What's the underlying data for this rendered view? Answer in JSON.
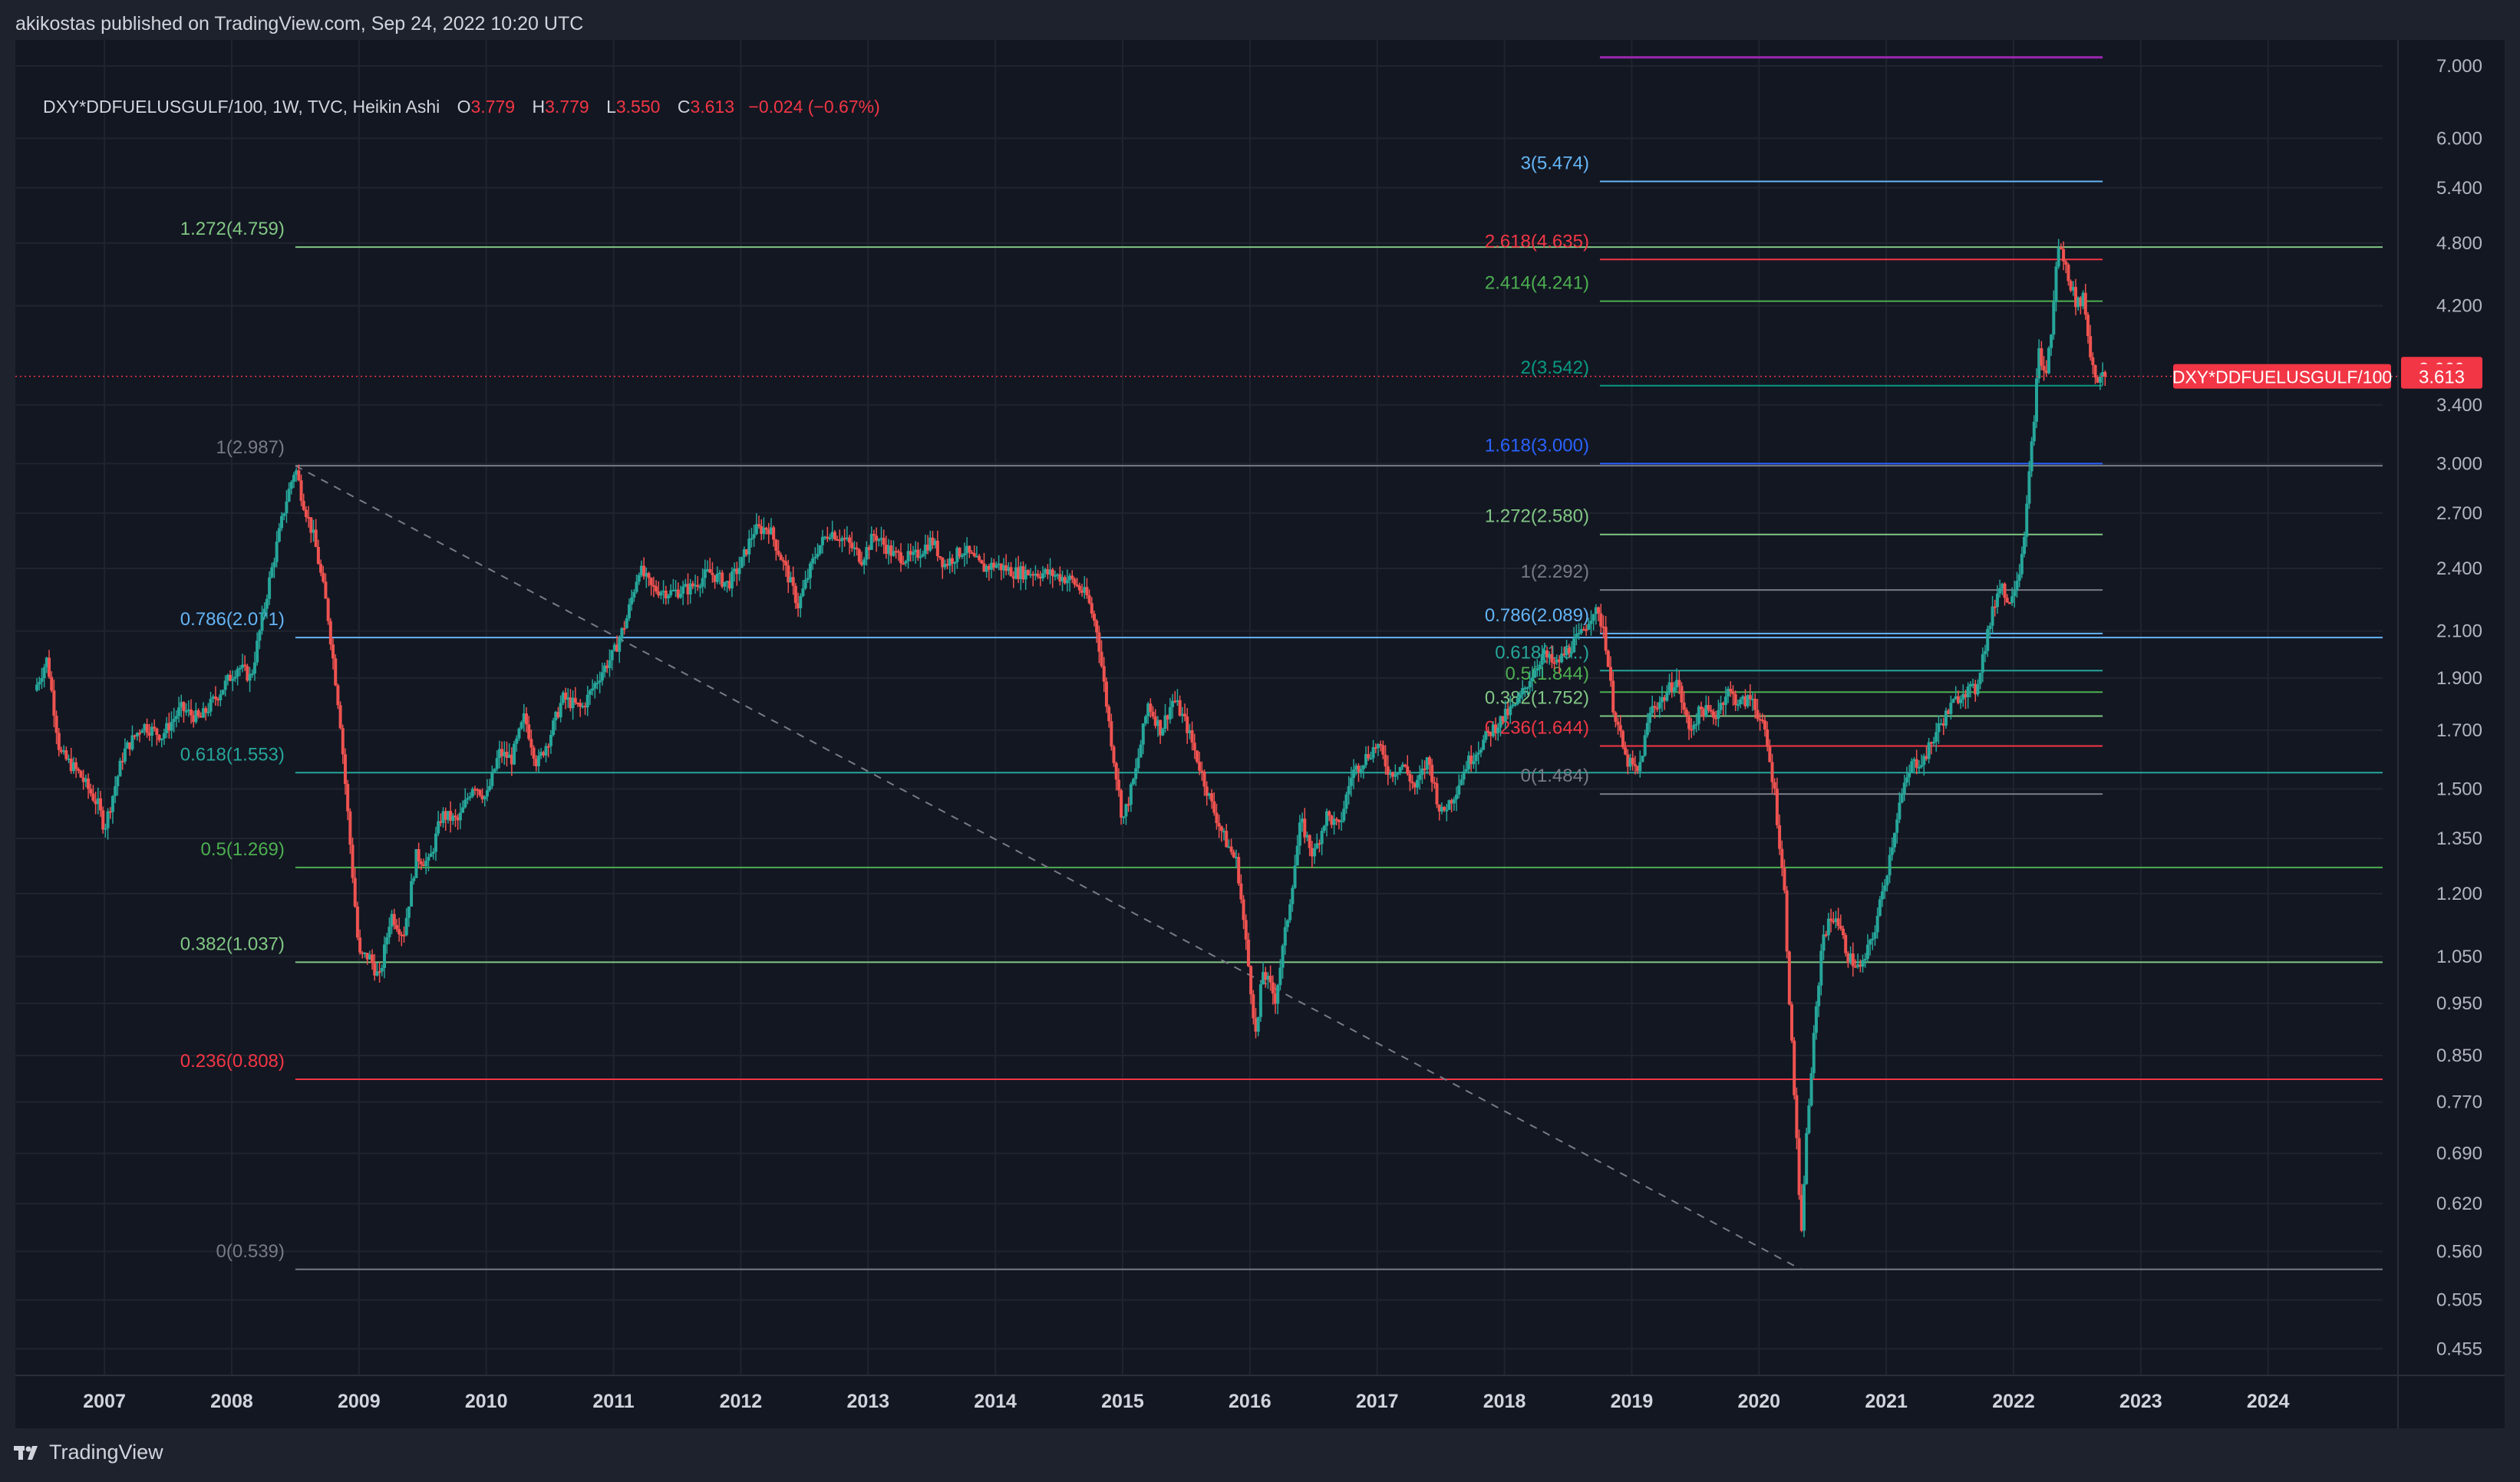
{
  "header": {
    "publisher_text": "akikostas published on TradingView.com, Sep 24, 2022 10:20 UTC"
  },
  "legend": {
    "symbol_text": "DXY*DDFUELUSGULF/100, 1W, TVC, Heikin Ashi",
    "o_label": "O",
    "o_value": "3.779",
    "h_label": "H",
    "h_value": "3.779",
    "l_label": "L",
    "l_value": "3.550",
    "c_label": "C",
    "c_value": "3.613",
    "change": "−0.024 (−0.67%)"
  },
  "footer": {
    "brand": "TradingView",
    "logo_icon": "tradingview-logo-icon"
  },
  "colors": {
    "background": "#131722",
    "up": "#26a69a",
    "down": "#ef5350",
    "grid": "#20242f",
    "axis_text": "#b2b5be",
    "price_label": "#f23645"
  },
  "chart_data": {
    "type": "candlestick",
    "style": "Heikin Ashi",
    "interval": "1W",
    "y_scale": "log",
    "x_axis_tick_labels": [
      "2007",
      "2008",
      "2009",
      "2010",
      "2011",
      "2012",
      "2013",
      "2014",
      "2015",
      "2016",
      "2017",
      "2018",
      "2019",
      "2020",
      "2021",
      "2022",
      "2023",
      "2024"
    ],
    "y_axis_tick_labels": [
      "7.000",
      "6.000",
      "5.400",
      "4.800",
      "4.200",
      "3.400",
      "3.000",
      "2.700",
      "2.400",
      "2.100",
      "1.900",
      "1.700",
      "1.500",
      "1.350",
      "1.200",
      "1.050",
      "0.950",
      "0.850",
      "0.770",
      "0.690",
      "0.620",
      "0.560",
      "0.505",
      "0.455"
    ],
    "y_range": [
      0.43,
      7.4
    ],
    "x_range": [
      2006.3,
      2024.9
    ],
    "last_price": {
      "series_label": "DXY*DDFUELUSGULF/100",
      "value": "3.613",
      "upper_value": "3.669"
    },
    "price_path": [
      [
        2006.45,
        1.85
      ],
      [
        2006.55,
        1.98
      ],
      [
        2006.65,
        1.62
      ],
      [
        2006.8,
        1.55
      ],
      [
        2006.95,
        1.45
      ],
      [
        2007.0,
        1.38
      ],
      [
        2007.15,
        1.62
      ],
      [
        2007.3,
        1.72
      ],
      [
        2007.45,
        1.68
      ],
      [
        2007.6,
        1.78
      ],
      [
        2007.75,
        1.74
      ],
      [
        2007.9,
        1.84
      ],
      [
        2008.05,
        1.95
      ],
      [
        2008.15,
        1.9
      ],
      [
        2008.3,
        2.35
      ],
      [
        2008.42,
        2.75
      ],
      [
        2008.5,
        2.98
      ],
      [
        2008.55,
        2.8
      ],
      [
        2008.65,
        2.55
      ],
      [
        2008.75,
        2.2
      ],
      [
        2008.85,
        1.75
      ],
      [
        2008.95,
        1.25
      ],
      [
        2009.0,
        1.05
      ],
      [
        2009.08,
        1.05
      ],
      [
        2009.16,
        1.0
      ],
      [
        2009.25,
        1.15
      ],
      [
        2009.35,
        1.1
      ],
      [
        2009.45,
        1.3
      ],
      [
        2009.55,
        1.28
      ],
      [
        2009.65,
        1.42
      ],
      [
        2009.78,
        1.4
      ],
      [
        2009.9,
        1.52
      ],
      [
        2010.0,
        1.47
      ],
      [
        2010.1,
        1.62
      ],
      [
        2010.2,
        1.6
      ],
      [
        2010.3,
        1.75
      ],
      [
        2010.4,
        1.58
      ],
      [
        2010.5,
        1.68
      ],
      [
        2010.6,
        1.82
      ],
      [
        2010.75,
        1.78
      ],
      [
        2010.9,
        1.92
      ],
      [
        2011.0,
        2.0
      ],
      [
        2011.1,
        2.15
      ],
      [
        2011.2,
        2.4
      ],
      [
        2011.3,
        2.3
      ],
      [
        2011.45,
        2.28
      ],
      [
        2011.6,
        2.3
      ],
      [
        2011.75,
        2.38
      ],
      [
        2011.9,
        2.32
      ],
      [
        2012.0,
        2.42
      ],
      [
        2012.1,
        2.6
      ],
      [
        2012.22,
        2.62
      ],
      [
        2012.35,
        2.4
      ],
      [
        2012.45,
        2.22
      ],
      [
        2012.6,
        2.5
      ],
      [
        2012.7,
        2.6
      ],
      [
        2012.82,
        2.55
      ],
      [
        2012.95,
        2.45
      ],
      [
        2013.05,
        2.58
      ],
      [
        2013.2,
        2.47
      ],
      [
        2013.35,
        2.45
      ],
      [
        2013.5,
        2.55
      ],
      [
        2013.6,
        2.42
      ],
      [
        2013.75,
        2.5
      ],
      [
        2013.9,
        2.4
      ],
      [
        2014.0,
        2.42
      ],
      [
        2014.15,
        2.38
      ],
      [
        2014.3,
        2.38
      ],
      [
        2014.45,
        2.37
      ],
      [
        2014.6,
        2.34
      ],
      [
        2014.72,
        2.26
      ],
      [
        2014.8,
        2.1
      ],
      [
        2014.9,
        1.7
      ],
      [
        2015.0,
        1.4
      ],
      [
        2015.1,
        1.55
      ],
      [
        2015.2,
        1.8
      ],
      [
        2015.3,
        1.7
      ],
      [
        2015.4,
        1.82
      ],
      [
        2015.5,
        1.72
      ],
      [
        2015.6,
        1.58
      ],
      [
        2015.7,
        1.45
      ],
      [
        2015.8,
        1.35
      ],
      [
        2015.9,
        1.28
      ],
      [
        2016.0,
        1.0
      ],
      [
        2016.05,
        0.88
      ],
      [
        2016.1,
        1.02
      ],
      [
        2016.2,
        0.96
      ],
      [
        2016.3,
        1.15
      ],
      [
        2016.4,
        1.4
      ],
      [
        2016.5,
        1.3
      ],
      [
        2016.6,
        1.42
      ],
      [
        2016.7,
        1.38
      ],
      [
        2016.8,
        1.55
      ],
      [
        2016.9,
        1.6
      ],
      [
        2017.0,
        1.65
      ],
      [
        2017.1,
        1.55
      ],
      [
        2017.2,
        1.58
      ],
      [
        2017.3,
        1.5
      ],
      [
        2017.4,
        1.6
      ],
      [
        2017.5,
        1.42
      ],
      [
        2017.6,
        1.48
      ],
      [
        2017.7,
        1.58
      ],
      [
        2017.8,
        1.64
      ],
      [
        2017.9,
        1.7
      ],
      [
        2018.0,
        1.75
      ],
      [
        2018.1,
        1.8
      ],
      [
        2018.2,
        1.9
      ],
      [
        2018.3,
        2.0
      ],
      [
        2018.4,
        1.95
      ],
      [
        2018.5,
        2.02
      ],
      [
        2018.6,
        2.08
      ],
      [
        2018.7,
        2.2
      ],
      [
        2018.78,
        2.12
      ],
      [
        2018.85,
        1.8
      ],
      [
        2018.95,
        1.6
      ],
      [
        2019.05,
        1.55
      ],
      [
        2019.15,
        1.78
      ],
      [
        2019.25,
        1.82
      ],
      [
        2019.35,
        1.9
      ],
      [
        2019.45,
        1.7
      ],
      [
        2019.55,
        1.78
      ],
      [
        2019.65,
        1.75
      ],
      [
        2019.75,
        1.85
      ],
      [
        2019.85,
        1.8
      ],
      [
        2019.95,
        1.82
      ],
      [
        2020.05,
        1.68
      ],
      [
        2020.12,
        1.5
      ],
      [
        2020.2,
        1.2
      ],
      [
        2020.25,
        0.9
      ],
      [
        2020.3,
        0.7
      ],
      [
        2020.33,
        0.56
      ],
      [
        2020.36,
        0.68
      ],
      [
        2020.42,
        0.85
      ],
      [
        2020.5,
        1.1
      ],
      [
        2020.6,
        1.15
      ],
      [
        2020.7,
        1.05
      ],
      [
        2020.8,
        1.02
      ],
      [
        2020.9,
        1.1
      ],
      [
        2021.0,
        1.25
      ],
      [
        2021.1,
        1.45
      ],
      [
        2021.2,
        1.58
      ],
      [
        2021.3,
        1.6
      ],
      [
        2021.4,
        1.7
      ],
      [
        2021.5,
        1.78
      ],
      [
        2021.6,
        1.85
      ],
      [
        2021.7,
        1.85
      ],
      [
        2021.8,
        2.1
      ],
      [
        2021.9,
        2.35
      ],
      [
        2021.95,
        2.22
      ],
      [
        2022.05,
        2.4
      ],
      [
        2022.1,
        2.7
      ],
      [
        2022.15,
        3.2
      ],
      [
        2022.2,
        3.8
      ],
      [
        2022.25,
        3.6
      ],
      [
        2022.3,
        4.0
      ],
      [
        2022.35,
        4.8
      ],
      [
        2022.4,
        4.6
      ],
      [
        2022.5,
        4.2
      ],
      [
        2022.55,
        4.3
      ],
      [
        2022.6,
        3.8
      ],
      [
        2022.65,
        3.6
      ],
      [
        2022.72,
        3.613
      ]
    ],
    "fib_retracement_left": {
      "levels": [
        {
          "label": "1.272(4.759)",
          "ratio": 1.272,
          "value": 4.759,
          "color": "#81c784"
        },
        {
          "label": "1(2.987)",
          "ratio": 1,
          "value": 2.987,
          "color": "#787b86"
        },
        {
          "label": "0.786(2.071)",
          "ratio": 0.786,
          "value": 2.071,
          "color": "#64b5f6"
        },
        {
          "label": "0.618(1.553)",
          "ratio": 0.618,
          "value": 1.553,
          "color": "#26a69a"
        },
        {
          "label": "0.5(1.269)",
          "ratio": 0.5,
          "value": 1.269,
          "color": "#4caf50"
        },
        {
          "label": "0.382(1.037)",
          "ratio": 0.382,
          "value": 1.037,
          "color": "#81c784"
        },
        {
          "label": "0.236(0.808)",
          "ratio": 0.236,
          "value": 0.808,
          "color": "#f23645"
        },
        {
          "label": "0(0.539)",
          "ratio": 0,
          "value": 0.539,
          "color": "#787b86"
        }
      ],
      "trend_line_from": [
        2008.5,
        2.987
      ],
      "trend_line_to": [
        2020.33,
        0.539
      ],
      "start_x": 2008.5,
      "end_x": 2024.9
    },
    "fib_extension_right": {
      "levels": [
        {
          "label": "3(5.474)",
          "ratio": 3,
          "value": 5.474,
          "color": "#64b5f6"
        },
        {
          "label": "2.618(4.635)",
          "ratio": 2.618,
          "value": 4.635,
          "color": "#f23645"
        },
        {
          "label": "2.414(4.241)",
          "ratio": 2.414,
          "value": 4.241,
          "color": "#4caf50"
        },
        {
          "label": "2(3.542)",
          "ratio": 2,
          "value": 3.542,
          "color": "#089981"
        },
        {
          "label": "1.618(3.000)",
          "ratio": 1.618,
          "value": 3.0,
          "color": "#2962ff"
        },
        {
          "label": "1.272(2.580)",
          "ratio": 1.272,
          "value": 2.58,
          "color": "#81c784"
        },
        {
          "label": "1(2.292)",
          "ratio": 1,
          "value": 2.292,
          "color": "#787b86"
        },
        {
          "label": "0.786(2.089)",
          "ratio": 0.786,
          "value": 2.089,
          "color": "#64b5f6"
        },
        {
          "label": "0.618(1.9..)",
          "ratio": 0.618,
          "value": 1.93,
          "color": "#26a69a"
        },
        {
          "label": "0.5(1.844)",
          "ratio": 0.5,
          "value": 1.844,
          "color": "#4caf50"
        },
        {
          "label": "0.382(1.752)",
          "ratio": 0.382,
          "value": 1.752,
          "color": "#81c784"
        },
        {
          "label": "0.236(1.644)",
          "ratio": 0.236,
          "value": 1.644,
          "color": "#f23645"
        },
        {
          "label": "0(1.484)",
          "ratio": 0,
          "value": 1.484,
          "color": "#787b86"
        }
      ],
      "top_line_value": 7.13,
      "top_line_color": "#9c27b0",
      "start_x": 2018.75,
      "end_x": 2022.7
    }
  }
}
